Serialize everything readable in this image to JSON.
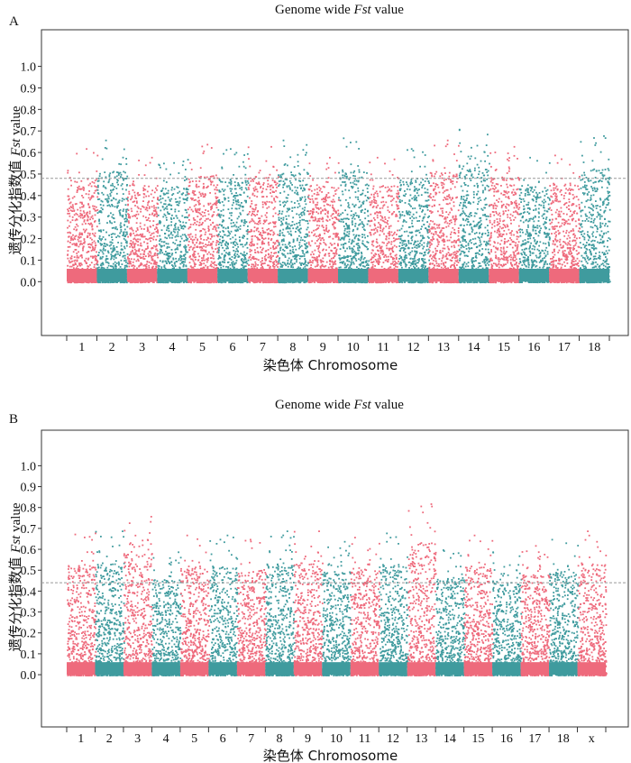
{
  "chart_data": [
    {
      "type": "scatter",
      "panel_label": "A",
      "title_prefix": "Genome wide ",
      "title_italic": "Fst",
      "title_suffix": " value",
      "ylabel_cn": "遗传分化指数值",
      "ylabel_italic": "Fst",
      "ylabel_suffix": " value",
      "xlabel": "染色体  Chromosome",
      "ylim": [
        -0.25,
        1.17
      ],
      "yticks": [
        "0.0",
        "0.1",
        "0.2",
        "0.3",
        "0.4",
        "0.5",
        "0.6",
        "0.7",
        "0.8",
        "0.9",
        "1.0"
      ],
      "threshold": 0.48,
      "categories": [
        "1",
        "2",
        "3",
        "4",
        "5",
        "6",
        "7",
        "8",
        "9",
        "10",
        "11",
        "12",
        "13",
        "14",
        "15",
        "16",
        "17",
        "18"
      ],
      "chrom_max": [
        0.62,
        0.66,
        0.58,
        0.57,
        0.64,
        0.62,
        0.63,
        0.66,
        0.58,
        0.67,
        0.58,
        0.62,
        0.66,
        0.71,
        0.63,
        0.58,
        0.59,
        0.68
      ],
      "colors": {
        "odd": "#ee6a7c",
        "even": "#3f9b9e",
        "threshold": "#999999"
      }
    },
    {
      "type": "scatter",
      "panel_label": "B",
      "title_prefix": "Genome wide ",
      "title_italic": "Fst",
      "title_suffix": " value",
      "ylabel_cn": "遗传分化指数值",
      "ylabel_italic": "Fst",
      "ylabel_suffix": " value",
      "xlabel": "染色体  Chromosome",
      "ylim": [
        -0.25,
        1.17
      ],
      "yticks": [
        "0.0",
        "0.1",
        "0.2",
        "0.3",
        "0.4",
        "0.5",
        "0.6",
        "0.7",
        "0.8",
        "0.9",
        "1.0"
      ],
      "threshold": 0.44,
      "categories": [
        "1",
        "2",
        "3",
        "4",
        "5",
        "6",
        "7",
        "8",
        "9",
        "10",
        "11",
        "12",
        "13",
        "14",
        "15",
        "16",
        "17",
        "18",
        "x"
      ],
      "chrom_max": [
        0.68,
        0.69,
        0.76,
        0.59,
        0.67,
        0.67,
        0.65,
        0.69,
        0.69,
        0.64,
        0.66,
        0.68,
        0.82,
        0.6,
        0.67,
        0.59,
        0.62,
        0.65,
        0.69
      ],
      "colors": {
        "odd": "#ee6a7c",
        "even": "#3f9b9e",
        "threshold": "#999999"
      }
    }
  ]
}
